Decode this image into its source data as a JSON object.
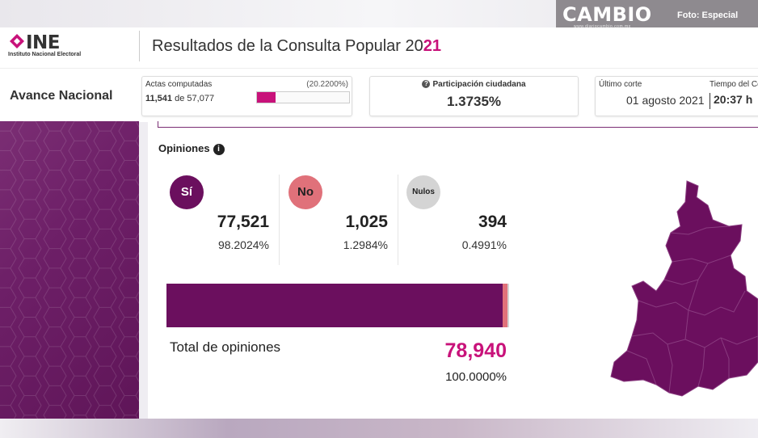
{
  "watermark": {
    "brand": "CAMBIO",
    "site": "www.diariocambio.com.mx",
    "credit": "Foto: Especial"
  },
  "header": {
    "logo_text": "INE",
    "logo_subtitle": "Instituto Nacional Electoral",
    "title_main": "Resultados de la Consulta Popular 20",
    "title_year_highlight": "21"
  },
  "status": {
    "section_label": "Avance Nacional",
    "actas": {
      "label": "Actas computadas",
      "percent": "(20.2200%)",
      "computed": "11,541",
      "of_text": "de",
      "total": "57,077",
      "progress_fraction": 0.2022
    },
    "participacion": {
      "label": "Participación ciudadana",
      "value": "1.3735%"
    },
    "corte": {
      "label": "Último corte",
      "date": "01 agosto 2021",
      "time_label": "Tiempo del Ce",
      "time": "20:37 h"
    }
  },
  "opiniones": {
    "title": "Opiniones",
    "options": [
      {
        "label": "Sí",
        "votes": "77,521",
        "percent": "98.2024%",
        "share": 98.2024,
        "color": "#6b0f5e"
      },
      {
        "label": "No",
        "votes": "1,025",
        "percent": "1.2984%",
        "share": 1.2984,
        "color": "#e0717a"
      },
      {
        "label": "Nulos",
        "votes": "394",
        "percent": "0.4991%",
        "share": 0.4991,
        "color": "#d4d4d4"
      }
    ],
    "total_label": "Total de opiniones",
    "total_votes": "78,940",
    "total_percent": "100.0000%"
  },
  "colors": {
    "accent": "#c8127a",
    "primary_purple": "#6b0f5e"
  }
}
